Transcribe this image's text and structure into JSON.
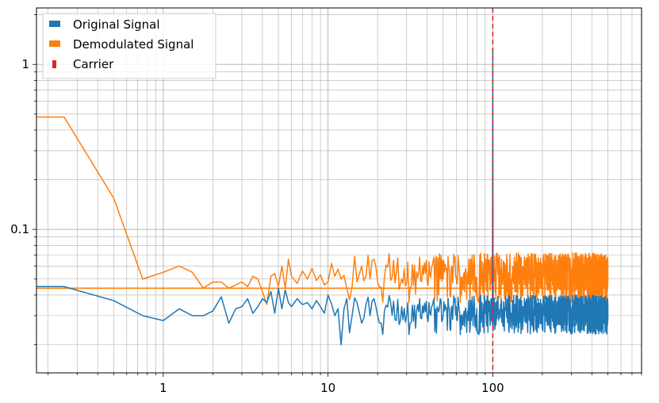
{
  "chart_data": {
    "type": "line",
    "title": "",
    "xlabel": "",
    "ylabel": "",
    "xscale": "log",
    "yscale": "log",
    "xlim": [
      0.17,
      800
    ],
    "ylim": [
      0.0135,
      2.2
    ],
    "grid": "major and minor, both axes",
    "legend": {
      "placement": "top-left",
      "entries": [
        {
          "label": "Original Signal",
          "color": "#1f77b4",
          "style": "solid"
        },
        {
          "label": "Demodulated Signal",
          "color": "#ff7f0e",
          "style": "solid"
        },
        {
          "label": "Carrier",
          "color": "#d62728",
          "style": "dashed"
        }
      ]
    },
    "x_ticks": [
      {
        "value": 1,
        "label": "1"
      },
      {
        "value": 10,
        "label": "10"
      },
      {
        "value": 100,
        "label": "100"
      }
    ],
    "y_ticks": [
      {
        "value": 0.1,
        "label": "0.1"
      },
      {
        "value": 1,
        "label": "1"
      }
    ],
    "carrier_frequency": 100,
    "series": [
      {
        "name": "Original Signal",
        "color": "#1f77b4",
        "x": [
          0.1,
          0.25,
          0.5,
          0.75,
          1.0,
          1.25,
          1.5,
          1.75,
          2.0,
          2.25,
          2.5,
          2.75,
          3.0,
          3.25,
          3.5,
          3.75,
          4.0,
          4.25,
          4.5,
          4.75,
          5.0,
          5.25,
          5.5,
          5.75,
          6.0,
          6.5,
          7.0,
          7.5,
          8.0,
          8.5,
          9.0,
          9.5,
          10,
          11,
          12,
          12.5,
          13,
          14,
          15,
          16,
          17,
          18,
          19,
          20,
          22,
          24,
          26,
          28,
          30,
          35,
          40,
          45,
          50,
          60,
          70,
          80,
          90,
          99,
          100,
          101,
          110,
          130,
          150,
          180,
          200,
          250,
          300,
          350,
          400,
          450,
          500
        ],
        "values": [
          0.045,
          0.045,
          0.037,
          0.03,
          0.028,
          0.033,
          0.03,
          0.03,
          0.032,
          0.039,
          0.027,
          0.033,
          0.034,
          0.038,
          0.031,
          0.034,
          0.038,
          0.036,
          0.042,
          0.031,
          0.044,
          0.033,
          0.043,
          0.036,
          0.034,
          0.038,
          0.035,
          0.036,
          0.033,
          0.037,
          0.034,
          0.031,
          0.04,
          0.03,
          0.02,
          0.033,
          0.038,
          0.03,
          0.036,
          0.027,
          0.035,
          0.03,
          0.038,
          0.03,
          0.032,
          0.036,
          0.028,
          0.034,
          0.03,
          0.035,
          0.029,
          0.033,
          0.03,
          0.034,
          0.029,
          0.033,
          0.031,
          0.035,
          1.25,
          0.03,
          0.032,
          0.029,
          0.033,
          0.03,
          0.031,
          0.028,
          0.032,
          0.029,
          0.03,
          0.031,
          0.028
        ]
      },
      {
        "name": "Demodulated Signal",
        "color": "#ff7f0e",
        "x": [
          0.1,
          0.25,
          0.5,
          0.75,
          1.0,
          1.25,
          1.5,
          1.75,
          2.0,
          2.25,
          2.5,
          2.75,
          3.0,
          3.25,
          3.5,
          3.75,
          4.0,
          4.25,
          4.5,
          4.75,
          5.0,
          5.25,
          5.5,
          5.75,
          6.0,
          6.5,
          7.0,
          7.5,
          8.0,
          8.5,
          9.0,
          9.5,
          10,
          11,
          12,
          13,
          14,
          15,
          16,
          17,
          18,
          19,
          20,
          22,
          24,
          26,
          28,
          30,
          35,
          40,
          50,
          60,
          70,
          80,
          90,
          100,
          120,
          150,
          180,
          200,
          250,
          300,
          350,
          400,
          450,
          500
        ],
        "values": [
          0.48,
          0.48,
          0.155,
          0.05,
          0.055,
          0.06,
          0.055,
          0.044,
          0.048,
          0.048,
          0.044,
          0.046,
          0.048,
          0.045,
          0.052,
          0.05,
          0.042,
          0.035,
          0.052,
          0.054,
          0.045,
          0.06,
          0.044,
          0.066,
          0.052,
          0.047,
          0.056,
          0.05,
          0.058,
          0.049,
          0.053,
          0.046,
          0.048,
          0.052,
          0.05,
          0.044,
          0.045,
          0.048,
          0.06,
          0.052,
          0.05,
          0.066,
          0.048,
          0.052,
          0.049,
          0.055,
          0.05,
          0.047,
          0.051,
          0.048,
          0.05,
          0.052,
          0.049,
          0.051,
          0.048,
          0.05,
          0.052,
          0.049,
          0.051,
          0.05,
          0.049,
          0.051,
          0.05,
          0.049,
          0.05,
          0.05
        ]
      }
    ],
    "reference_lines": [
      {
        "type": "horizontal",
        "value": 0.044,
        "color": "#ff7f0e",
        "note": "flat demodulated floor"
      }
    ]
  }
}
